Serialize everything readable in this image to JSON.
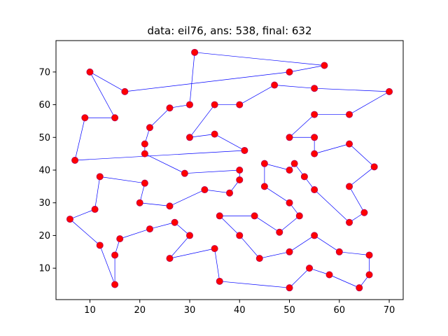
{
  "chart_data": {
    "type": "scatter",
    "title": "data: eil76, ans: 538, final: 632",
    "xlabel": "",
    "ylabel": "",
    "xlim": [
      3.2,
      72.8
    ],
    "ylim": [
      0.4,
      79.6
    ],
    "xticks": [
      10,
      20,
      30,
      40,
      50,
      60,
      70
    ],
    "yticks": [
      10,
      20,
      30,
      40,
      50,
      60,
      70
    ],
    "grid": false,
    "legend": "none",
    "colors": {
      "route": "#0000ff",
      "point_fill": "#ff0000",
      "point_edge": "#b0005a"
    },
    "route": [
      [
        6,
        25
      ],
      [
        11,
        28
      ],
      [
        12,
        38
      ],
      [
        21,
        36
      ],
      [
        20,
        30
      ],
      [
        26,
        29
      ],
      [
        33,
        34
      ],
      [
        38,
        33
      ],
      [
        40,
        37
      ],
      [
        40,
        40
      ],
      [
        29,
        39
      ],
      [
        21,
        45
      ],
      [
        21,
        48
      ],
      [
        22,
        53
      ],
      [
        26,
        59
      ],
      [
        30,
        60
      ],
      [
        31,
        76
      ],
      [
        57,
        72
      ],
      [
        50,
        70
      ],
      [
        17,
        64
      ],
      [
        10,
        70
      ],
      [
        15,
        56
      ],
      [
        9,
        56
      ],
      [
        7,
        43
      ],
      [
        41,
        46
      ],
      [
        35,
        51
      ],
      [
        30,
        50
      ],
      [
        35,
        60
      ],
      [
        40,
        60
      ],
      [
        47,
        66
      ],
      [
        55,
        65
      ],
      [
        70,
        64
      ],
      [
        62,
        57
      ],
      [
        55,
        57
      ],
      [
        50,
        50
      ],
      [
        55,
        50
      ],
      [
        55,
        45
      ],
      [
        62,
        48
      ],
      [
        67,
        41
      ],
      [
        62,
        35
      ],
      [
        65,
        27
      ],
      [
        62,
        24
      ],
      [
        55,
        34
      ],
      [
        53,
        38
      ],
      [
        51,
        42
      ],
      [
        50,
        40
      ],
      [
        45,
        42
      ],
      [
        45,
        35
      ],
      [
        50,
        30
      ],
      [
        52,
        26
      ],
      [
        48,
        21
      ],
      [
        43,
        26
      ],
      [
        36,
        26
      ],
      [
        40,
        20
      ],
      [
        44,
        13
      ],
      [
        50,
        15
      ],
      [
        55,
        20
      ],
      [
        60,
        15
      ],
      [
        66,
        14
      ],
      [
        66,
        8
      ],
      [
        64,
        4
      ],
      [
        58,
        8
      ],
      [
        54,
        10
      ],
      [
        50,
        4
      ],
      [
        36,
        6
      ],
      [
        35,
        16
      ],
      [
        26,
        13
      ],
      [
        30,
        20
      ],
      [
        27,
        24
      ],
      [
        22,
        22
      ],
      [
        16,
        19
      ],
      [
        15,
        14
      ],
      [
        15,
        5
      ],
      [
        12,
        17
      ],
      [
        6,
        25
      ]
    ]
  }
}
